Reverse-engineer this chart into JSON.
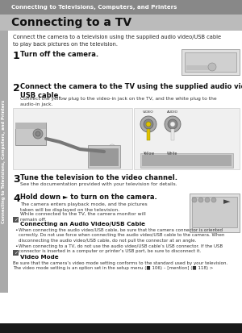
{
  "header_text": "Connecting to Televisions, Computers, and Printers",
  "title": "Connecting to a TV",
  "intro": "Connect the camera to a television using the supplied audio video/USB cable\nto play back pictures on the television.",
  "step1_num": "1",
  "step1_bold": "Turn off the camera.",
  "step2_num": "2",
  "step2_bold": "Connect the camera to the TV using the supplied audio video/\nUSB cable.",
  "step2_detail": "Connect the yellow plug to the video-in jack on the TV, and the white plug to the\naudio-in jack.",
  "step3_num": "3",
  "step3_bold": "Tune the television to the video channel.",
  "step3_detail": "See the documentation provided with your television for details.",
  "step4_num": "4",
  "step4_bold": "Hold down ► to turn on the camera.",
  "step4_detail1": "The camera enters playback mode, and the pictures\ntaken will be displayed on the television.",
  "step4_detail2": "While connected to the TV, the camera monitor will\nremain off.",
  "note1_title": "Connecting an Audio Video/USB Cable",
  "note1_b1": "When connecting the audio video/USB cable, be sure that the camera connector is oriented correctly. Do not use force when connecting the audio video/USB cable to the camera. When disconnecting the audio video/USB cable, do not pull the connector at an angle.",
  "note1_b2": "When connecting to a TV, do not use the audio video/USB cable’s USB connector. If the USB connector is inserted in a computer or printer’s USB port, be sure to disconnect it.",
  "note2_title": "Video Mode",
  "note2_text": "Be sure that the camera’s video mode setting conforms to the standard used by your television.\nThe video mode setting is an option set in the setup menu (■ 106) – [mention] (■ 118) >",
  "sidebar_text": "Connecting to Televisions, Computers, and Printers",
  "header_bg": "#888888",
  "header_fg": "#ffffff",
  "title_bg": "#bbbbbb",
  "body_bg": "#ffffff",
  "sidebar_bg": "#aaaaaa",
  "footer_bg": "#1a1a1a",
  "note_icon_bg": "#555555"
}
